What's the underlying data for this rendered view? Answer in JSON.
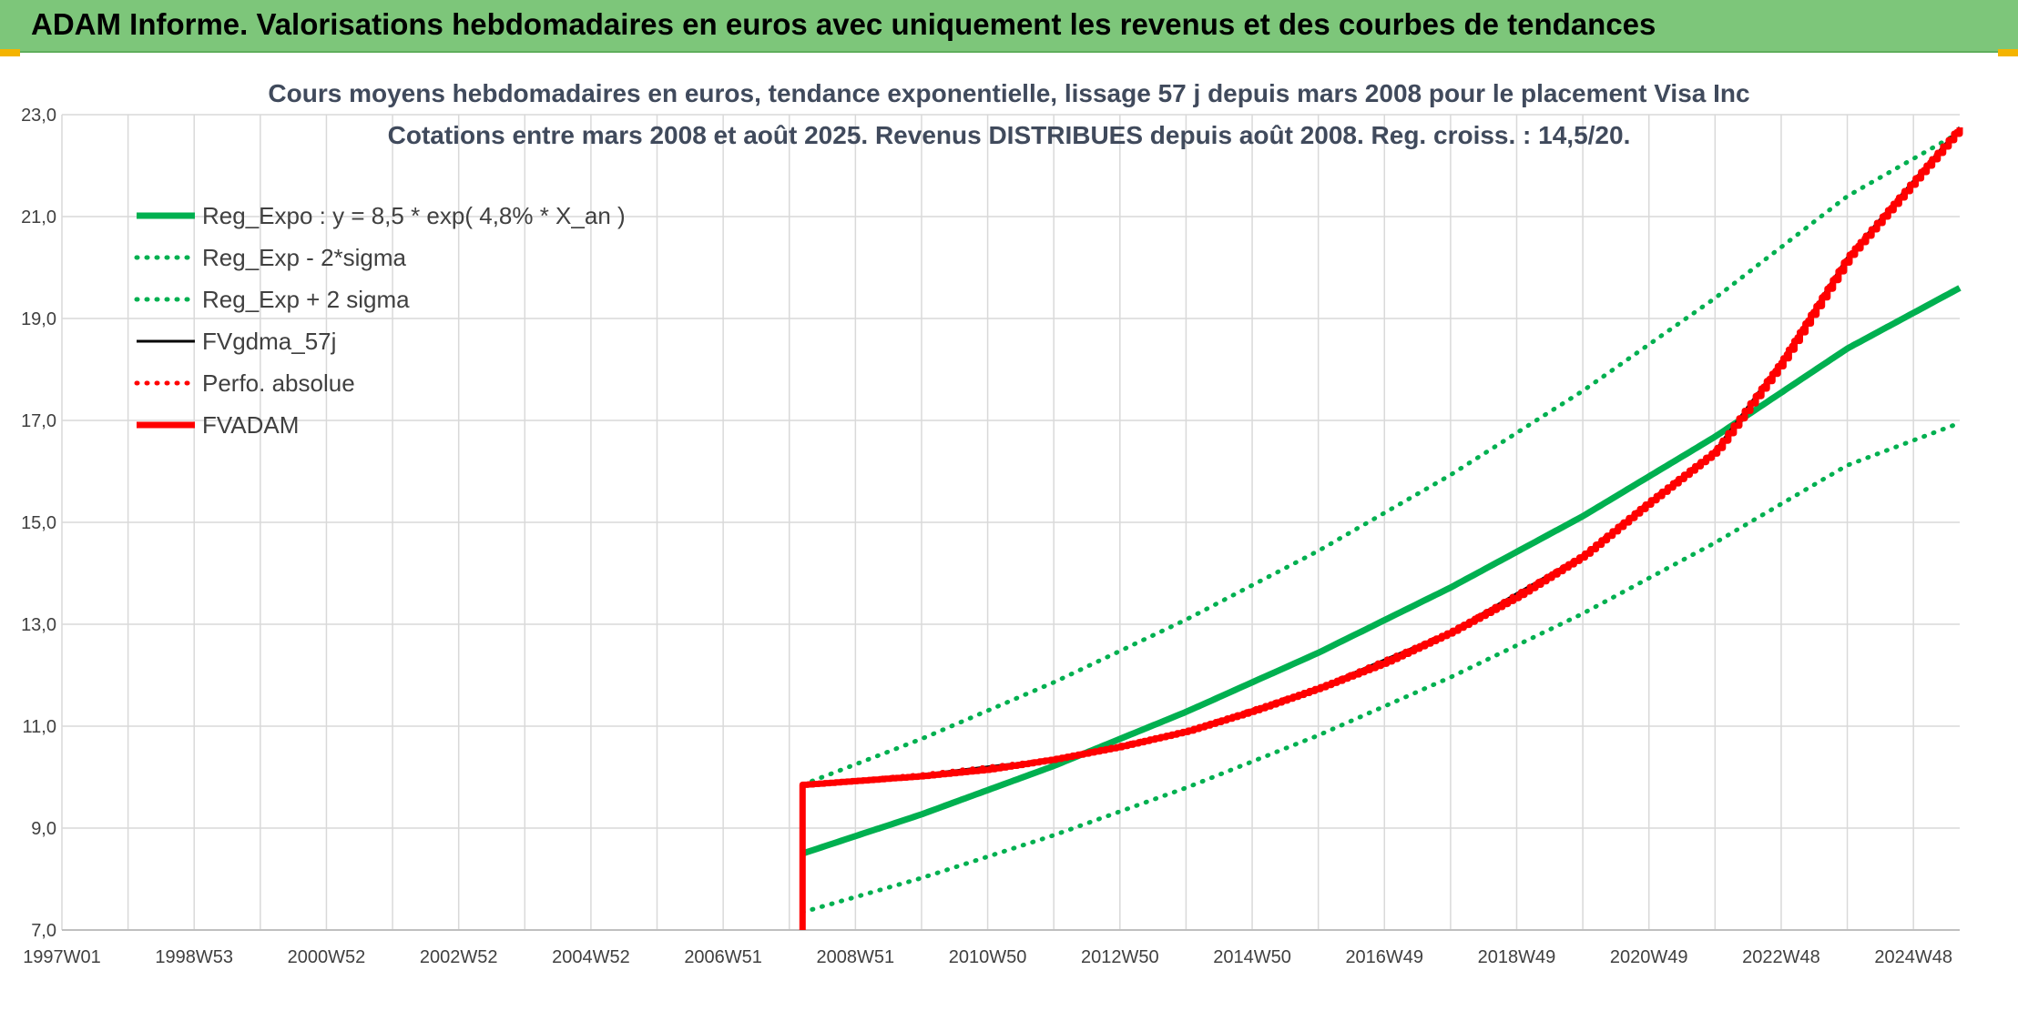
{
  "header": {
    "title": "ADAM Informe. Valorisations hebdomadaires en euros avec uniquement les revenus et des courbes de tendances"
  },
  "colors": {
    "header_bg": "#7dc67a",
    "green": "#00b050",
    "red": "#ff0000",
    "black": "#000000",
    "grid": "#d9d9d9"
  },
  "chart_data": {
    "type": "line",
    "title_line1": "Cours moyens hebdomadaires en euros, tendance exponentielle, lissage 57 j depuis mars 2008 pour le placement Visa Inc",
    "title_line2": "Cotations entre mars 2008 et août 2025. Revenus DISTRIBUES depuis août 2008. Reg. croiss. : 14,5/20.",
    "xlabel": "",
    "ylabel": "",
    "ylim": [
      7.0,
      23.0
    ],
    "yticks": [
      "7,0",
      "9,0",
      "11,0",
      "13,0",
      "15,0",
      "17,0",
      "19,0",
      "21,0",
      "23,0"
    ],
    "xlim": [
      1997.0,
      2025.7
    ],
    "xticks": [
      {
        "label": "1997W01",
        "year": 1997.0
      },
      {
        "label": "1998W53",
        "year": 1999.0
      },
      {
        "label": "2000W52",
        "year": 2001.0
      },
      {
        "label": "2002W52",
        "year": 2003.0
      },
      {
        "label": "2004W52",
        "year": 2005.0
      },
      {
        "label": "2006W51",
        "year": 2007.0
      },
      {
        "label": "2008W51",
        "year": 2009.0
      },
      {
        "label": "2010W50",
        "year": 2011.0
      },
      {
        "label": "2012W50",
        "year": 2013.0
      },
      {
        "label": "2014W50",
        "year": 2015.0
      },
      {
        "label": "2016W49",
        "year": 2017.0
      },
      {
        "label": "2018W49",
        "year": 2019.0
      },
      {
        "label": "2020W49",
        "year": 2021.0
      },
      {
        "label": "2022W48",
        "year": 2023.0
      },
      {
        "label": "2024W48",
        "year": 2025.0
      }
    ],
    "grid": true,
    "legend_position": "top-left",
    "series": [
      {
        "name": "Reg_Expo : y = 8,5 * exp( 4,8% *  X_an )",
        "style": "solid-thick",
        "color": "#00b050",
        "x": [
          2008.2,
          2010,
          2012,
          2014,
          2016,
          2018,
          2020,
          2022,
          2024,
          2025.7
        ],
        "y": [
          8.5,
          9.27,
          10.22,
          11.28,
          12.44,
          13.72,
          15.12,
          16.68,
          18.41,
          19.6
        ]
      },
      {
        "name": "Reg_Exp - 2*sigma",
        "style": "dotted",
        "color": "#00b050",
        "x": [
          2008.2,
          2010,
          2012,
          2014,
          2016,
          2018,
          2020,
          2022,
          2024,
          2025.7
        ],
        "y": [
          7.35,
          8.02,
          8.86,
          9.79,
          10.82,
          11.96,
          13.21,
          14.6,
          16.12,
          16.95
        ]
      },
      {
        "name": "Reg_Exp + 2 sigma",
        "style": "dotted",
        "color": "#00b050",
        "x": [
          2008.2,
          2010,
          2012,
          2014,
          2016,
          2018,
          2020,
          2022,
          2024,
          2025.7
        ],
        "y": [
          9.85,
          10.75,
          11.86,
          13.09,
          14.44,
          15.93,
          17.58,
          19.4,
          21.4,
          22.65
        ]
      },
      {
        "name": "FVgdma_57j",
        "style": "solid",
        "color": "#000000",
        "x": [
          2008.2,
          2010,
          2012,
          2014,
          2016,
          2018,
          2020,
          2021,
          2022,
          2023,
          2024,
          2025.7
        ],
        "y": [
          9.85,
          10.05,
          10.35,
          10.9,
          11.75,
          12.85,
          14.35,
          15.4,
          16.4,
          18.15,
          20.2,
          22.75
        ]
      },
      {
        "name": "Perfo. absolue",
        "style": "dotted",
        "color": "#ff0000",
        "x": [
          2008.2,
          2010,
          2012,
          2014,
          2016,
          2018,
          2020,
          2021,
          2022,
          2023,
          2024,
          2025.7
        ],
        "y": [
          9.85,
          10.05,
          10.35,
          10.9,
          11.75,
          12.85,
          14.35,
          15.4,
          16.4,
          18.15,
          20.2,
          22.75
        ]
      },
      {
        "name": "FVADAM",
        "style": "solid-thick",
        "color": "#ff0000",
        "x": [
          2008.2,
          2008.2,
          2010,
          2011,
          2012,
          2013,
          2014,
          2015,
          2016,
          2017,
          2018,
          2019,
          2020,
          2021,
          2022,
          2023,
          2024,
          2025.0,
          2025.7
        ],
        "y": [
          7.0,
          9.85,
          10.02,
          10.15,
          10.35,
          10.6,
          10.9,
          11.3,
          11.75,
          12.25,
          12.85,
          13.55,
          14.35,
          15.4,
          16.4,
          18.15,
          20.2,
          21.7,
          22.75
        ],
        "steps_per_year": 12
      }
    ]
  }
}
